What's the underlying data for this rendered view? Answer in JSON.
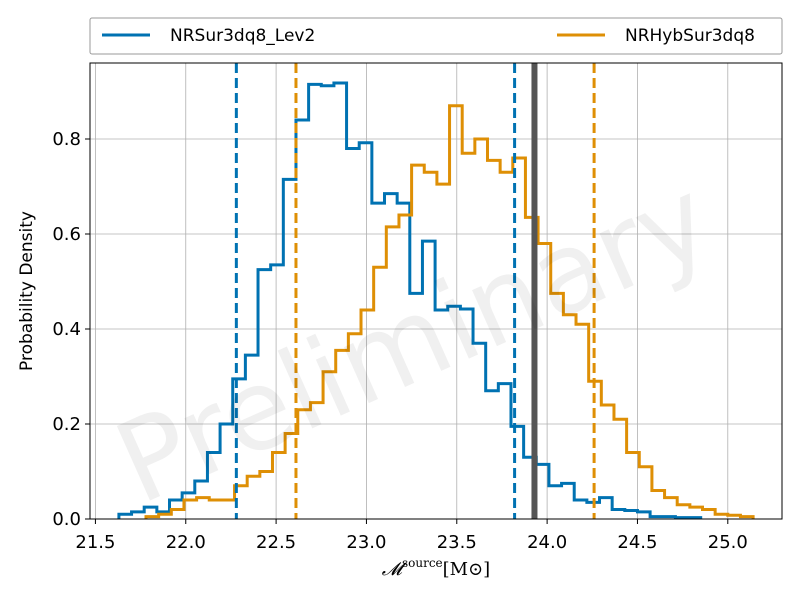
{
  "chart_data": {
    "type": "histogram",
    "title": "",
    "xlabel": "",
    "xlabel_math": {
      "base": "𝓜",
      "superscript": "source",
      "suffix": "[M⊙]"
    },
    "ylabel": "Probability Density",
    "xlim": [
      21.47,
      25.3
    ],
    "ylim": [
      0,
      0.96
    ],
    "xticks": [
      "21.5",
      "22.0",
      "22.5",
      "23.0",
      "23.5",
      "24.0",
      "24.5",
      "25.0"
    ],
    "yticks": [
      "0.0",
      "0.2",
      "0.4",
      "0.6",
      "0.8"
    ],
    "grid": true,
    "legend_position": "top (above plot), two columns",
    "watermark": "Preliminary",
    "series": [
      {
        "name": "NRSur3dq8_Lev2",
        "color": "#0072b2",
        "style": "step",
        "bin_edges": [
          21.63,
          21.7,
          21.77,
          21.84,
          21.91,
          21.98,
          22.05,
          22.12,
          22.19,
          22.26,
          22.33,
          22.4,
          22.47,
          22.54,
          22.61,
          22.68,
          22.75,
          22.82,
          22.89,
          22.96,
          23.03,
          23.1,
          23.17,
          23.24,
          23.31,
          23.38,
          23.45,
          23.52,
          23.59,
          23.66,
          23.73,
          23.8,
          23.87,
          23.94,
          24.01,
          24.08,
          24.15,
          24.22,
          24.29,
          24.36,
          24.43,
          24.5,
          24.57,
          24.64,
          24.71,
          24.78,
          24.85
        ],
        "density": [
          0.01,
          0.015,
          0.025,
          0.015,
          0.04,
          0.055,
          0.08,
          0.14,
          0.2,
          0.295,
          0.345,
          0.525,
          0.535,
          0.715,
          0.84,
          0.915,
          0.912,
          0.918,
          0.78,
          0.792,
          0.665,
          0.685,
          0.665,
          0.475,
          0.585,
          0.44,
          0.448,
          0.442,
          0.37,
          0.27,
          0.285,
          0.195,
          0.13,
          0.115,
          0.07,
          0.075,
          0.04,
          0.035,
          0.045,
          0.02,
          0.018,
          0.015,
          0.005,
          0.005,
          0.003,
          0.003
        ],
        "credible_interval": [
          22.28,
          23.82
        ]
      },
      {
        "name": "NRHybSur3dq8",
        "color": "#de8f05",
        "style": "step",
        "bin_edges": [
          21.78,
          21.85,
          21.92,
          21.99,
          22.06,
          22.13,
          22.2,
          22.27,
          22.34,
          22.41,
          22.48,
          22.55,
          22.62,
          22.69,
          22.76,
          22.83,
          22.9,
          22.97,
          23.04,
          23.11,
          23.18,
          23.25,
          23.32,
          23.39,
          23.46,
          23.53,
          23.6,
          23.67,
          23.74,
          23.81,
          23.88,
          23.95,
          24.02,
          24.09,
          24.16,
          24.23,
          24.3,
          24.37,
          24.44,
          24.51,
          24.58,
          24.65,
          24.72,
          24.79,
          24.86,
          24.93,
          25.0,
          25.07,
          25.14
        ],
        "density": [
          0.005,
          0.01,
          0.02,
          0.04,
          0.045,
          0.04,
          0.04,
          0.07,
          0.09,
          0.1,
          0.14,
          0.18,
          0.23,
          0.245,
          0.31,
          0.355,
          0.39,
          0.44,
          0.53,
          0.615,
          0.64,
          0.745,
          0.73,
          0.705,
          0.87,
          0.77,
          0.8,
          0.755,
          0.73,
          0.76,
          0.635,
          0.58,
          0.475,
          0.43,
          0.41,
          0.29,
          0.24,
          0.21,
          0.14,
          0.11,
          0.06,
          0.045,
          0.03,
          0.025,
          0.02,
          0.01,
          0.008,
          0.005
        ],
        "credible_interval": [
          22.61,
          24.26
        ]
      }
    ],
    "reference_line": {
      "x": 23.93,
      "color": "#555555"
    }
  }
}
